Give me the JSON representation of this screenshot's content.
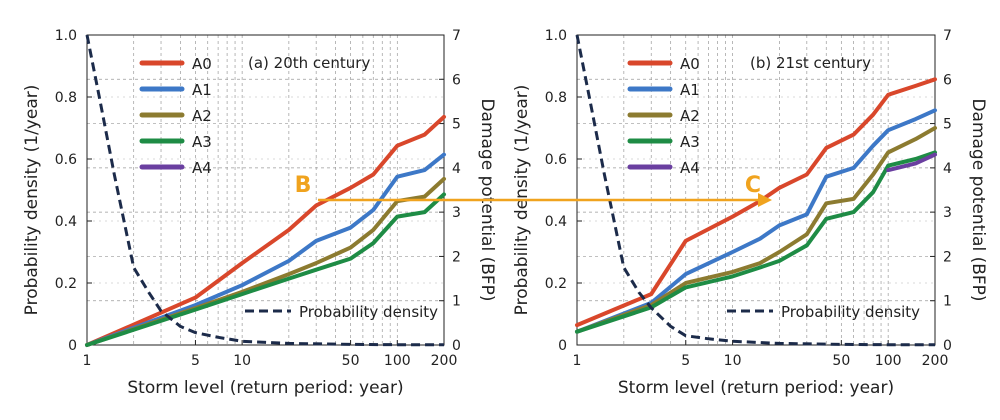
{
  "chart_data": [
    {
      "type": "line",
      "panel_label": "(a) 20th century",
      "xlabel": "Storm level (return period: year)",
      "ylabel": "Probability density (1/year)",
      "y2label": "Damage potential (BFP)",
      "x_scale": "log",
      "xlim": [
        1,
        200
      ],
      "ylim": [
        0,
        1.0
      ],
      "y2lim": [
        0,
        7
      ],
      "x_ticks": [
        1,
        5,
        10,
        50,
        100,
        200
      ],
      "x_tick_labels": [
        "1",
        "5",
        "10",
        "50",
        "100",
        "200"
      ],
      "y_ticks": [
        0,
        0.2,
        0.4,
        0.6,
        0.8,
        1.0
      ],
      "y_tick_labels": [
        "0",
        "0.2",
        "0.4",
        "0.6",
        "0.8",
        "1.0"
      ],
      "y2_ticks": [
        0,
        1,
        2,
        3,
        4,
        5,
        6,
        7
      ],
      "y2_tick_labels": [
        "0",
        "1",
        "2",
        "3",
        "4",
        "5",
        "6",
        "7"
      ],
      "grid": true,
      "legend_position": "upper-left",
      "annotation": "B",
      "series": [
        {
          "name": "A0",
          "color": "#d9472b",
          "axis": "right",
          "x": [
            1,
            5,
            10,
            20,
            30,
            50,
            70,
            100,
            150,
            200
          ],
          "y": [
            0,
            1.07,
            1.85,
            2.6,
            3.15,
            3.55,
            3.85,
            4.5,
            4.75,
            5.15
          ]
        },
        {
          "name": "A1",
          "color": "#3d78c7",
          "axis": "right",
          "x": [
            1,
            5,
            10,
            20,
            30,
            50,
            70,
            100,
            150,
            200
          ],
          "y": [
            0,
            0.9,
            1.35,
            1.9,
            2.35,
            2.65,
            3.05,
            3.8,
            3.95,
            4.3
          ]
        },
        {
          "name": "A2",
          "color": "#8c7b30",
          "axis": "right",
          "x": [
            1,
            5,
            10,
            20,
            30,
            50,
            70,
            100,
            150,
            200
          ],
          "y": [
            0,
            0.83,
            1.2,
            1.6,
            1.85,
            2.2,
            2.6,
            3.25,
            3.35,
            3.75
          ]
        },
        {
          "name": "A3",
          "color": "#1e8c45",
          "axis": "right",
          "x": [
            1,
            5,
            10,
            20,
            30,
            50,
            70,
            100,
            150,
            200
          ],
          "y": [
            0,
            0.8,
            1.15,
            1.5,
            1.7,
            1.95,
            2.3,
            2.9,
            3.0,
            3.4
          ]
        },
        {
          "name": "A4",
          "color": "#6a3fa0",
          "axis": "right",
          "x": [],
          "y": []
        },
        {
          "name": "Probability density",
          "color": "#1c2b4a",
          "axis": "left",
          "dashed": true,
          "x": [
            1,
            1.2,
            1.5,
            2,
            2.5,
            3,
            4,
            5,
            7,
            10,
            20,
            50,
            100,
            200
          ],
          "y": [
            1.0,
            0.8,
            0.55,
            0.25,
            0.17,
            0.11,
            0.06,
            0.04,
            0.025,
            0.012,
            0.005,
            0.002,
            0.001,
            0.001
          ]
        }
      ]
    },
    {
      "type": "line",
      "panel_label": "(b) 21st century",
      "xlabel": "Storm level (return period: year)",
      "ylabel": "Probability density (1/year)",
      "y2label": "Damage potential (BFP)",
      "x_scale": "log",
      "xlim": [
        1,
        200
      ],
      "ylim": [
        0,
        1.0
      ],
      "y2lim": [
        0,
        7
      ],
      "x_ticks": [
        1,
        5,
        10,
        50,
        100,
        200
      ],
      "x_tick_labels": [
        "1",
        "5",
        "10",
        "50",
        "100",
        "200"
      ],
      "y_ticks": [
        0,
        0.2,
        0.4,
        0.6,
        0.8,
        1.0
      ],
      "y_tick_labels": [
        "0",
        "0.2",
        "0.4",
        "0.6",
        "0.8",
        "1.0"
      ],
      "y2_ticks": [
        0,
        1,
        2,
        3,
        4,
        5,
        6,
        7
      ],
      "y2_tick_labels": [
        "0",
        "1",
        "2",
        "3",
        "4",
        "5",
        "6",
        "7"
      ],
      "grid": true,
      "legend_position": "upper-left",
      "annotation": "C",
      "series": [
        {
          "name": "A0",
          "color": "#d9472b",
          "axis": "right",
          "x": [
            1,
            3,
            5,
            10,
            15,
            20,
            30,
            40,
            60,
            80,
            100,
            150,
            200
          ],
          "y": [
            0.45,
            1.15,
            2.35,
            2.9,
            3.25,
            3.55,
            3.85,
            4.45,
            4.75,
            5.2,
            5.65,
            5.85,
            6.0
          ]
        },
        {
          "name": "A1",
          "color": "#3d78c7",
          "axis": "right",
          "x": [
            1,
            3,
            5,
            10,
            15,
            20,
            30,
            40,
            60,
            80,
            100,
            150,
            200
          ],
          "y": [
            0.3,
            0.95,
            1.6,
            2.1,
            2.4,
            2.7,
            2.95,
            3.8,
            4.0,
            4.5,
            4.85,
            5.1,
            5.3
          ]
        },
        {
          "name": "A2",
          "color": "#8c7b30",
          "axis": "right",
          "x": [
            1,
            3,
            5,
            10,
            15,
            20,
            30,
            40,
            60,
            80,
            100,
            150,
            200
          ],
          "y": [
            0.3,
            0.9,
            1.4,
            1.65,
            1.85,
            2.1,
            2.5,
            3.2,
            3.3,
            3.85,
            4.35,
            4.65,
            4.9
          ]
        },
        {
          "name": "A3",
          "color": "#1e8c45",
          "axis": "right",
          "x": [
            1,
            3,
            5,
            10,
            15,
            20,
            30,
            40,
            60,
            80,
            100,
            150,
            200
          ],
          "y": [
            0.3,
            0.85,
            1.3,
            1.55,
            1.75,
            1.9,
            2.25,
            2.85,
            3.0,
            3.45,
            4.05,
            4.2,
            4.35
          ]
        },
        {
          "name": "A4",
          "color": "#6a3fa0",
          "axis": "right",
          "x": [
            100,
            150,
            200
          ],
          "y": [
            3.95,
            4.1,
            4.3
          ]
        },
        {
          "name": "Probability density",
          "color": "#1c2b4a",
          "axis": "left",
          "dashed": true,
          "x": [
            1,
            1.2,
            1.5,
            2,
            2.5,
            3,
            4,
            5,
            7,
            10,
            20,
            50,
            100,
            200
          ],
          "y": [
            1.0,
            0.8,
            0.55,
            0.25,
            0.17,
            0.12,
            0.06,
            0.03,
            0.02,
            0.012,
            0.005,
            0.002,
            0.001,
            0.001
          ]
        }
      ]
    }
  ]
}
